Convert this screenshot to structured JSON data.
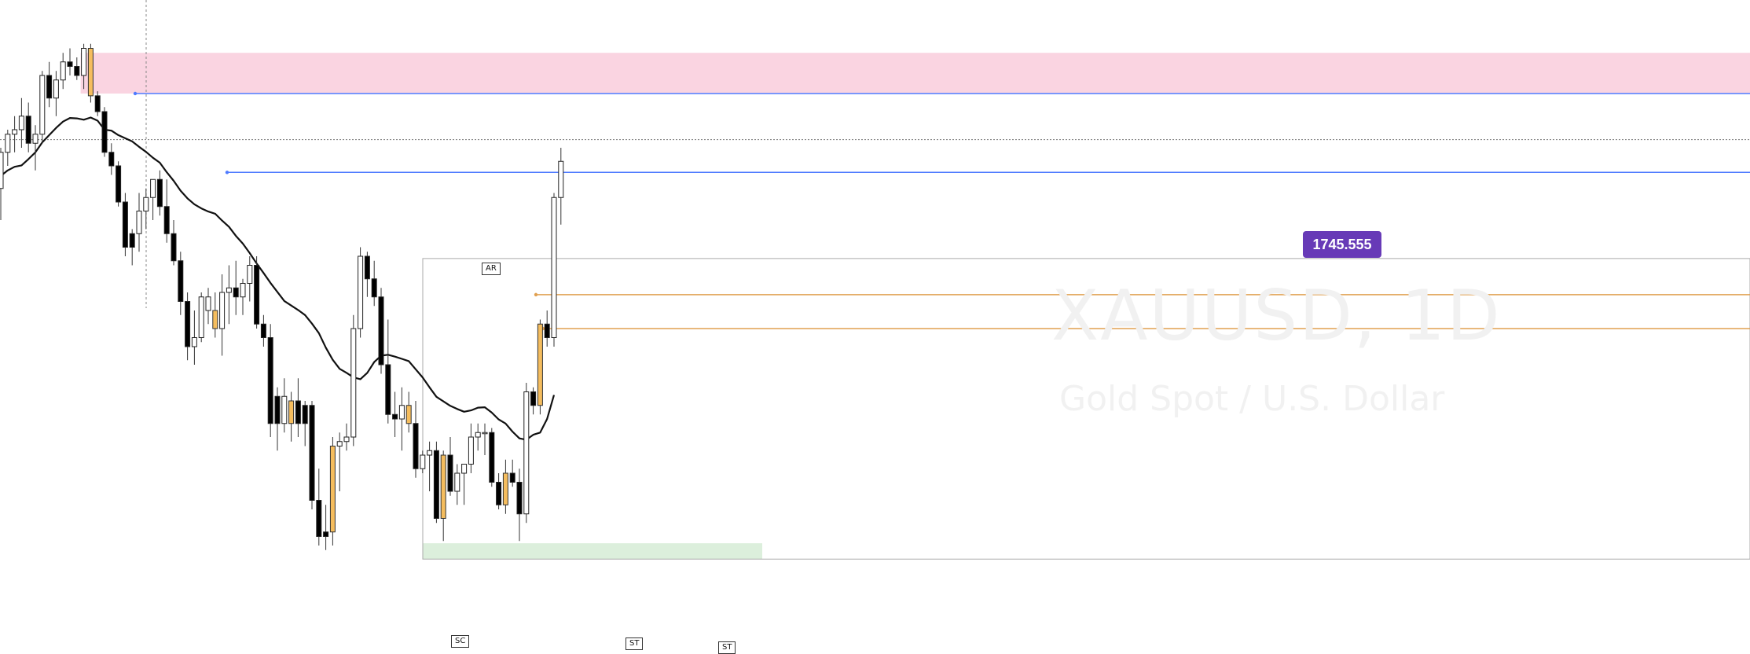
{
  "watermark": {
    "symbol": "XAUUSD, 1D",
    "description": "Gold Spot / U.S. Dollar"
  },
  "price_label": "1745.555",
  "annotations": {
    "ar": "AR",
    "sc": "SC",
    "st1": "ST",
    "st2": "ST"
  },
  "colors": {
    "bull": "#ffffff",
    "bear": "#000000",
    "highlight": "#f5bd5e",
    "wick": "#333333",
    "supply_zone": "#fad4e1",
    "demand_zone": "#dcefdc",
    "blue_level": "#4f7bff",
    "orange_level": "#e0a050",
    "moving_average": "#111111",
    "price_label_bg": "#673ab7"
  },
  "chart_data": {
    "type": "candlestick",
    "symbol": "XAUUSD",
    "interval": "1D",
    "y_range": [
      1660,
      1770
    ],
    "candles": [
      [
        1742.0,
        1751.0,
        1735.0,
        1750.0,
        "bull"
      ],
      [
        1750.0,
        1755.0,
        1747.0,
        1754.0,
        "bull"
      ],
      [
        1754.0,
        1758.0,
        1750.0,
        1755.0,
        "bull"
      ],
      [
        1755.0,
        1762.0,
        1751.0,
        1758.0,
        "bull"
      ],
      [
        1758.0,
        1761.0,
        1750.0,
        1752.0,
        "bear"
      ],
      [
        1752.0,
        1756.0,
        1746.0,
        1754.0,
        "bull"
      ],
      [
        1754.0,
        1768.0,
        1752.0,
        1767.0,
        "bull"
      ],
      [
        1767.0,
        1770.0,
        1760.0,
        1762.0,
        "bear"
      ],
      [
        1762.0,
        1768.0,
        1758.0,
        1766.0,
        "bull"
      ],
      [
        1766.0,
        1772.0,
        1764.0,
        1770.0,
        "bull"
      ],
      [
        1770.0,
        1773.0,
        1767.0,
        1769.0,
        "bear"
      ],
      [
        1769.0,
        1771.0,
        1766.0,
        1767.0,
        "bear"
      ],
      [
        1767.0,
        1774.0,
        1764.0,
        1773.0,
        "bull"
      ],
      [
        1773.0,
        1774.0,
        1761.0,
        1762.5,
        "highlight"
      ],
      [
        1762.5,
        1763.5,
        1758.0,
        1759.0,
        "bear"
      ],
      [
        1759.0,
        1760.0,
        1749.0,
        1750.0,
        "bear"
      ],
      [
        1750.0,
        1752.0,
        1745.0,
        1747.0,
        "bear"
      ],
      [
        1747.0,
        1748.0,
        1738.0,
        1739.0,
        "bear"
      ],
      [
        1739.0,
        1741.0,
        1727.0,
        1729.0,
        "bear"
      ],
      [
        1729.0,
        1733.0,
        1725.0,
        1732.0,
        "bear"
      ],
      [
        1732.0,
        1741.0,
        1728.0,
        1737.0,
        "bull"
      ],
      [
        1737.0,
        1742.0,
        1733.0,
        1740.0,
        "bull"
      ],
      [
        1740.0,
        1744.0,
        1735.0,
        1744.0,
        "bull"
      ],
      [
        1744.0,
        1746.0,
        1736.0,
        1738.0,
        "bear"
      ],
      [
        1738.0,
        1744.0,
        1730.0,
        1732.0,
        "bear"
      ],
      [
        1732.0,
        1735.0,
        1725.0,
        1726.0,
        "bear"
      ],
      [
        1726.0,
        1728.0,
        1714.0,
        1717.0,
        "bear"
      ],
      [
        1717.0,
        1719.0,
        1704.0,
        1707.0,
        "bear"
      ],
      [
        1707.0,
        1715.0,
        1703.0,
        1709.0,
        "bull"
      ],
      [
        1709.0,
        1719.0,
        1708.0,
        1718.0,
        "bull"
      ],
      [
        1718.0,
        1720.0,
        1712.0,
        1715.0,
        "bull"
      ],
      [
        1715.0,
        1719.0,
        1709.0,
        1711.0,
        "highlight"
      ],
      [
        1711.0,
        1723.0,
        1705.0,
        1719.0,
        "bull"
      ],
      [
        1719.0,
        1725.0,
        1712.0,
        1720.0,
        "bull"
      ],
      [
        1720.0,
        1726.0,
        1714.0,
        1718.0,
        "bear"
      ],
      [
        1718.0,
        1722.0,
        1714.0,
        1721.0,
        "bull"
      ],
      [
        1721.0,
        1727.0,
        1717.0,
        1725.0,
        "bull"
      ],
      [
        1725.0,
        1727.0,
        1711.0,
        1712.0,
        "bear"
      ],
      [
        1712.0,
        1714.0,
        1707.0,
        1709.0,
        "bear"
      ],
      [
        1709.0,
        1712.0,
        1687.0,
        1690.0,
        "bear"
      ],
      [
        1690.0,
        1698.0,
        1684.0,
        1696.0,
        "bear"
      ],
      [
        1696.0,
        1700.0,
        1688.0,
        1690.0,
        "bull"
      ],
      [
        1690.0,
        1697.0,
        1686.0,
        1695.0,
        "highlight"
      ],
      [
        1695.0,
        1700.0,
        1687.0,
        1690.0,
        "bear"
      ],
      [
        1690.0,
        1695.0,
        1685.0,
        1694.0,
        "bear"
      ],
      [
        1694.0,
        1695.0,
        1671.0,
        1673.0,
        "bear"
      ],
      [
        1673.0,
        1680.0,
        1663.0,
        1665.0,
        "bear"
      ],
      [
        1665.0,
        1672.0,
        1662.0,
        1666.0,
        "bear"
      ],
      [
        1666.0,
        1687.0,
        1663.0,
        1685.0,
        "highlight"
      ],
      [
        1685.0,
        1688.0,
        1675.0,
        1686.0,
        "bull"
      ],
      [
        1686.0,
        1690.0,
        1684.0,
        1687.0,
        "bull"
      ],
      [
        1687.0,
        1714.0,
        1685.0,
        1711.0,
        "bull"
      ],
      [
        1711.0,
        1729.0,
        1709.0,
        1727.0,
        "bull"
      ],
      [
        1727.0,
        1728.0,
        1718.0,
        1722.0,
        "bear"
      ],
      [
        1722.0,
        1726.0,
        1716.0,
        1718.0,
        "bear"
      ],
      [
        1718.0,
        1720.0,
        1701.0,
        1703.0,
        "bear"
      ],
      [
        1703.0,
        1713.0,
        1690.0,
        1692.0,
        "bear"
      ],
      [
        1692.0,
        1697.0,
        1687.0,
        1691.0,
        "bear"
      ],
      [
        1691.0,
        1698.0,
        1684.0,
        1694.0,
        "bull"
      ],
      [
        1694.0,
        1697.0,
        1688.0,
        1690.0,
        "highlight"
      ],
      [
        1690.0,
        1695.0,
        1678.0,
        1680.0,
        "bear"
      ],
      [
        1680.0,
        1684.0,
        1679.0,
        1683.0,
        "bull"
      ],
      [
        1683.0,
        1686.0,
        1675.0,
        1684.0,
        "bull"
      ],
      [
        1684.0,
        1686.0,
        1668.0,
        1669.0,
        "bear"
      ],
      [
        1669.0,
        1684.0,
        1664.0,
        1683.0,
        "highlight"
      ],
      [
        1683.0,
        1687.0,
        1674.0,
        1675.0,
        "bear"
      ],
      [
        1675.0,
        1681.0,
        1672.0,
        1679.0,
        "bull"
      ],
      [
        1679.0,
        1681.0,
        1672.0,
        1681.0,
        "bull"
      ],
      [
        1681.0,
        1690.0,
        1679.0,
        1687.0,
        "bull"
      ],
      [
        1687.0,
        1690.0,
        1684.0,
        1688.0,
        "bull"
      ],
      [
        1688.0,
        1690.0,
        1683.0,
        1688.0,
        "bull"
      ],
      [
        1688.0,
        1689.0,
        1676.0,
        1677.0,
        "bear"
      ],
      [
        1677.0,
        1679.0,
        1671.0,
        1672.0,
        "bear"
      ],
      [
        1672.0,
        1682.0,
        1670.0,
        1679.0,
        "highlight"
      ],
      [
        1679.0,
        1682.0,
        1676.0,
        1677.0,
        "bear"
      ],
      [
        1677.0,
        1680.0,
        1664.0,
        1670.0,
        "bear"
      ],
      [
        1670.0,
        1699.0,
        1668.0,
        1697.0,
        "bull"
      ],
      [
        1697.0,
        1698.0,
        1692.0,
        1694.0,
        "bear"
      ],
      [
        1694.0,
        1713.0,
        1692.0,
        1712.0,
        "highlight"
      ],
      [
        1712.0,
        1715.0,
        1707.0,
        1709.0,
        "bear"
      ],
      [
        1709.0,
        1741.0,
        1707.0,
        1740.0,
        "bull"
      ],
      [
        1740.0,
        1751.0,
        1734.0,
        1748.0,
        "bull"
      ]
    ],
    "moving_average": {
      "name": "",
      "start_index": 0,
      "values": [
        1744.8,
        1746.0,
        1746.8,
        1747.1,
        1748.5,
        1750.0,
        1752.2,
        1753.8,
        1755.4,
        1756.8,
        1757.6,
        1757.5,
        1757.2,
        1757.7,
        1757.0,
        1755.0,
        1754.8,
        1753.8,
        1753.1,
        1752.4,
        1751.2,
        1750.1,
        1748.8,
        1747.7,
        1745.6,
        1743.7,
        1741.5,
        1739.8,
        1738.5,
        1737.6,
        1736.9,
        1736.4,
        1734.9,
        1733.5,
        1731.5,
        1729.8,
        1727.7,
        1725.4,
        1723.3,
        1721.1,
        1719.1,
        1717.1,
        1716.1,
        1715.1,
        1714.0,
        1712.1,
        1710.0,
        1706.8,
        1704.1,
        1702.1,
        1701.2,
        1700.2,
        1699.8,
        1701.2,
        1703.6,
        1705.0,
        1705.2,
        1704.8,
        1704.3,
        1703.8,
        1702.0,
        1700.2,
        1698.0,
        1695.9,
        1694.9,
        1693.9,
        1693.2,
        1692.6,
        1692.9,
        1693.5,
        1693.6,
        1692.4,
        1690.9,
        1690.0,
        1688.2,
        1686.7,
        1686.4,
        1687.5,
        1688.0,
        1691.0,
        1696.3
      ]
    },
    "levels": [
      {
        "price": 1745.555,
        "style": "blue",
        "labeled": true
      },
      {
        "price": 1763.0,
        "style": "blue",
        "labeled": false
      },
      {
        "price": 1718.5,
        "style": "orange",
        "labeled": false
      },
      {
        "price": 1711.0,
        "style": "orange",
        "labeled": false
      }
    ],
    "reference_price": 1752.8,
    "zones": [
      {
        "kind": "supply",
        "price_from": 1763.0,
        "price_to": 1772.0
      },
      {
        "kind": "demand",
        "price_from": 1660.0,
        "price_to": 1663.5
      }
    ],
    "range_box": {
      "price_top": 1726.5,
      "price_bottom": 1660.0
    }
  }
}
